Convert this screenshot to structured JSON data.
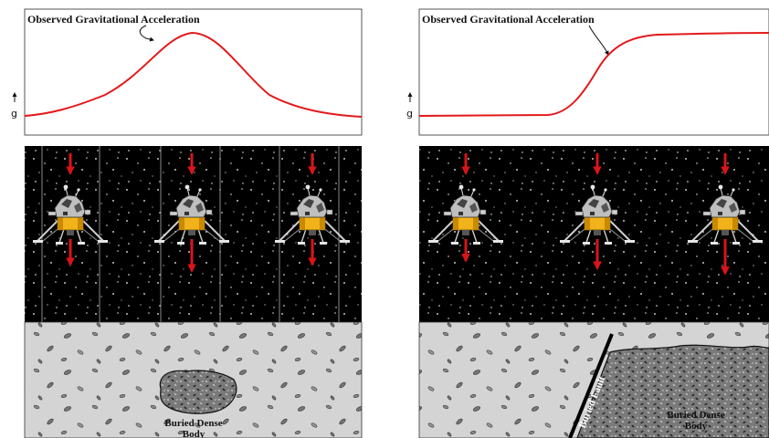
{
  "panels": [
    {
      "id": "left",
      "title": "Observed Gravitational Acceleration",
      "axis_label": "g",
      "body_label_line1": "Buried Dense",
      "body_label_line2": "Body",
      "arrow_strengths": [
        1.0,
        1.25,
        1.0
      ]
    },
    {
      "id": "right",
      "title": "Observed Gravitational Acceleration",
      "axis_label": "g",
      "fault_label": "Buried Fault",
      "body_label_line1": "Buried Dense",
      "body_label_line2": "Body",
      "arrow_strengths": [
        0.85,
        1.15,
        1.35
      ]
    }
  ],
  "colors": {
    "curve": "#e3191b",
    "arrow": "#d9151a",
    "space": "#000000",
    "ground": "#d4d4d4",
    "dense_body": "#7a7a7a",
    "lander_gold": "#f2b21a",
    "lander_frame": "#d8d8d8"
  }
}
